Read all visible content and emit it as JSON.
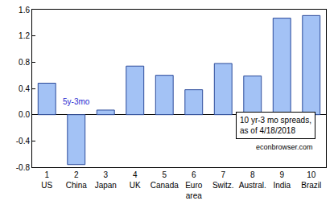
{
  "chart_data": {
    "type": "bar",
    "categories": [
      "1\nUS",
      "2\nChina",
      "3\nJapan",
      "4\nUK",
      "5\nCanada",
      "6\nEuro\narea",
      "7\nSwitz.",
      "8\nAustral.",
      "9\nIndia",
      "10\nBrazil"
    ],
    "values": [
      0.48,
      -0.76,
      0.07,
      0.74,
      0.6,
      0.38,
      0.78,
      0.59,
      1.47,
      1.51
    ],
    "color": "#a3c2f5",
    "ylim": [
      -0.8,
      1.6
    ],
    "yticks": [
      -0.8,
      -0.4,
      {
        "value": 0,
        "label": "0.0"
      },
      0.4,
      0.8,
      1.2,
      1.6
    ],
    "grid": false,
    "annotations": [
      "5y-3mo",
      "10 yr-3 mo spreads,\nas of 4/18/2018",
      "econbrowser.com"
    ]
  }
}
